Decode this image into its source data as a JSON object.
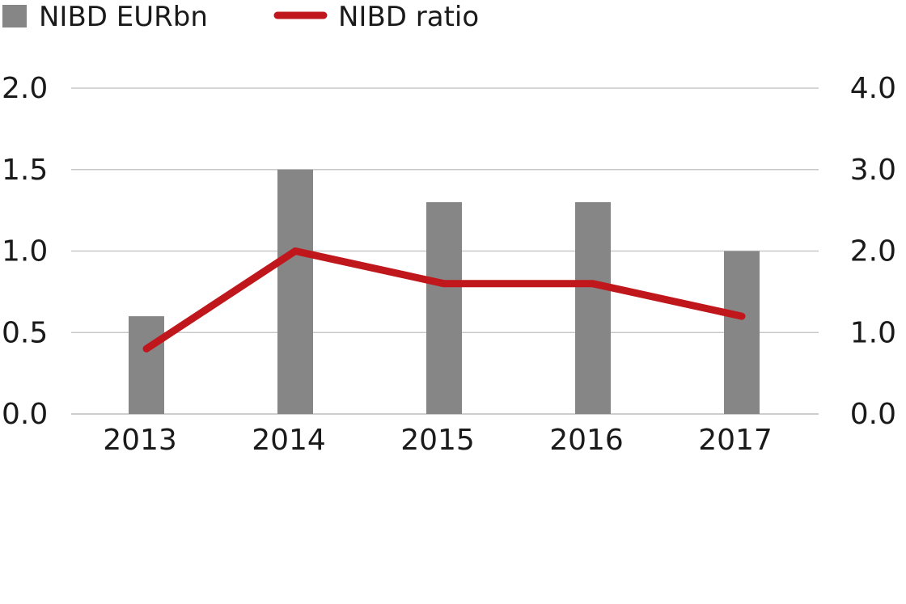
{
  "chart_data": {
    "type": "bar",
    "categories": [
      "2013",
      "2014",
      "2015",
      "2016",
      "2017"
    ],
    "series": [
      {
        "name": "NIBD EURbn",
        "type": "bar",
        "axis": "left",
        "color": "#868686",
        "values": [
          0.6,
          1.5,
          1.3,
          1.3,
          1.0
        ]
      },
      {
        "name": "NIBD ratio",
        "type": "line",
        "axis": "right",
        "color": "#c0171c",
        "values": [
          0.8,
          2.0,
          1.6,
          1.6,
          1.2
        ]
      }
    ],
    "left_axis": {
      "ylim": [
        0,
        2.0
      ],
      "ticks": [
        "0.0",
        "0.5",
        "1.0",
        "1.5",
        "2.0"
      ]
    },
    "right_axis": {
      "ylim": [
        0,
        4.0
      ],
      "ticks": [
        "0.0",
        "1.0",
        "2.0",
        "3.0",
        "4.0"
      ]
    },
    "grid": true,
    "legend_position": "top-left"
  }
}
